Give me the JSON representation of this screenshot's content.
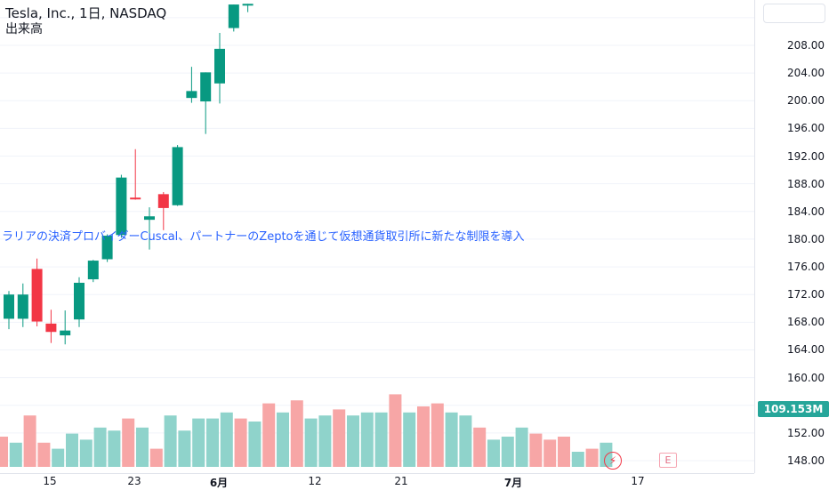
{
  "header": {
    "symbol_title": "Tesla, Inc., 1日, NASDAQ",
    "volume_label": "出来高"
  },
  "news": {
    "headline": "ラリアの決済プロバイダーCuscal、パートナーのZeptoを通じて仮想通貨取引所に新たな制限を導入"
  },
  "price_axis": {
    "labels": [
      "208.00",
      "204.00",
      "200.00",
      "196.00",
      "192.00",
      "188.00",
      "184.00",
      "180.00",
      "176.00",
      "172.00",
      "168.00",
      "164.00",
      "160.00",
      "152.00",
      "148.00"
    ],
    "volume_badge": "109.153M"
  },
  "time_axis": {
    "labels": [
      "15",
      "23",
      "6月",
      "12",
      "21",
      "7月",
      "17"
    ]
  },
  "markers": {
    "earnings_label": "E"
  },
  "colors": {
    "up": "#089981",
    "down": "#f23645",
    "volume_up": "#8fd3cb",
    "volume_down": "#f7a6a6",
    "news_text": "#2962ff"
  },
  "chart_data": {
    "type": "candlestick",
    "title": "Tesla, Inc., 1日, NASDAQ",
    "ylim": [
      147,
      214
    ],
    "candles": [
      {
        "o": 168.5,
        "h": 172.5,
        "l": 167.0,
        "c": 172.0
      },
      {
        "o": 168.5,
        "h": 173.6,
        "l": 167.3,
        "c": 172.0
      },
      {
        "o": 175.7,
        "h": 177.2,
        "l": 167.4,
        "c": 168.1
      },
      {
        "o": 167.8,
        "h": 169.8,
        "l": 165.0,
        "c": 166.6
      },
      {
        "o": 166.1,
        "h": 169.7,
        "l": 164.8,
        "c": 166.8
      },
      {
        "o": 168.4,
        "h": 174.5,
        "l": 167.3,
        "c": 173.7
      },
      {
        "o": 174.2,
        "h": 177.0,
        "l": 173.8,
        "c": 176.9
      },
      {
        "o": 177.1,
        "h": 180.7,
        "l": 176.7,
        "c": 180.5
      },
      {
        "o": 180.6,
        "h": 189.3,
        "l": 180.2,
        "c": 188.9
      },
      {
        "o": 186.0,
        "h": 193.0,
        "l": 185.7,
        "c": 185.8
      },
      {
        "o": 182.8,
        "h": 184.6,
        "l": 178.5,
        "c": 183.3
      },
      {
        "o": 186.5,
        "h": 186.8,
        "l": 181.3,
        "c": 184.5
      },
      {
        "o": 184.9,
        "h": 193.6,
        "l": 184.8,
        "c": 193.3
      },
      {
        "o": 200.4,
        "h": 204.9,
        "l": 199.7,
        "c": 201.4
      },
      {
        "o": 199.9,
        "h": 204.1,
        "l": 195.2,
        "c": 204.1
      },
      {
        "o": 202.5,
        "h": 209.8,
        "l": 199.6,
        "c": 207.5
      },
      {
        "o": 210.5,
        "h": 213.9,
        "l": 210.0,
        "c": 213.9
      },
      {
        "o": 214.0,
        "h": 214.0,
        "l": 212.8,
        "c": 214.0
      }
    ],
    "volume_bars": [
      {
        "dir": "down",
        "v": 100
      },
      {
        "dir": "up",
        "v": 98
      },
      {
        "dir": "down",
        "v": 107
      },
      {
        "dir": "down",
        "v": 98
      },
      {
        "dir": "up",
        "v": 96
      },
      {
        "dir": "up",
        "v": 101
      },
      {
        "dir": "up",
        "v": 99
      },
      {
        "dir": "up",
        "v": 103
      },
      {
        "dir": "up",
        "v": 102
      },
      {
        "dir": "down",
        "v": 106
      },
      {
        "dir": "up",
        "v": 103
      },
      {
        "dir": "down",
        "v": 96
      },
      {
        "dir": "up",
        "v": 107
      },
      {
        "dir": "up",
        "v": 102
      },
      {
        "dir": "up",
        "v": 106
      },
      {
        "dir": "up",
        "v": 106
      },
      {
        "dir": "up",
        "v": 108
      },
      {
        "dir": "down",
        "v": 106
      },
      {
        "dir": "up",
        "v": 105
      },
      {
        "dir": "down",
        "v": 111
      },
      {
        "dir": "up",
        "v": 108
      },
      {
        "dir": "down",
        "v": 112
      },
      {
        "dir": "up",
        "v": 106
      },
      {
        "dir": "up",
        "v": 107
      },
      {
        "dir": "down",
        "v": 109
      },
      {
        "dir": "up",
        "v": 107
      },
      {
        "dir": "up",
        "v": 108
      },
      {
        "dir": "up",
        "v": 108
      },
      {
        "dir": "down",
        "v": 114
      },
      {
        "dir": "up",
        "v": 108
      },
      {
        "dir": "down",
        "v": 110
      },
      {
        "dir": "down",
        "v": 111
      },
      {
        "dir": "up",
        "v": 108
      },
      {
        "dir": "up",
        "v": 107
      },
      {
        "dir": "down",
        "v": 103
      },
      {
        "dir": "up",
        "v": 99
      },
      {
        "dir": "up",
        "v": 100
      },
      {
        "dir": "up",
        "v": 103
      },
      {
        "dir": "down",
        "v": 101
      },
      {
        "dir": "down",
        "v": 99
      },
      {
        "dir": "down",
        "v": 100
      },
      {
        "dir": "up",
        "v": 95
      },
      {
        "dir": "down",
        "v": 96
      },
      {
        "dir": "up",
        "v": 98
      }
    ]
  }
}
